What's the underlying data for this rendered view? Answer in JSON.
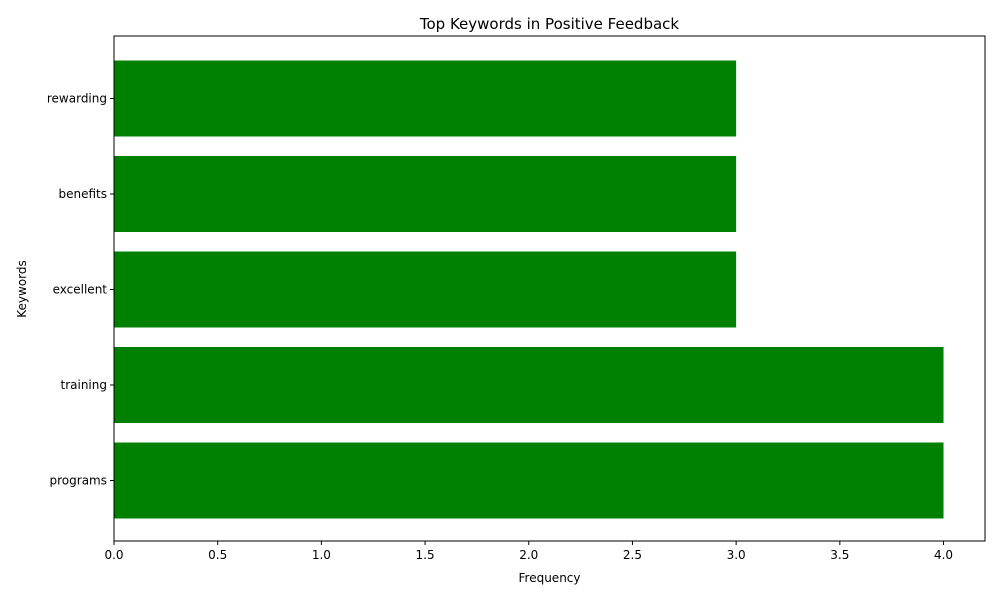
{
  "chart_data": {
    "type": "bar",
    "orientation": "horizontal",
    "title": "Top Keywords in Positive Feedback",
    "xlabel": "Frequency",
    "ylabel": "Keywords",
    "categories": [
      "programs",
      "training",
      "excellent",
      "benefits",
      "rewarding"
    ],
    "values": [
      4,
      4,
      3,
      3,
      3
    ],
    "xlim": [
      0,
      4.2
    ],
    "xticks": [
      "0.0",
      "0.5",
      "1.0",
      "1.5",
      "2.0",
      "2.5",
      "3.0",
      "3.5",
      "4.0"
    ],
    "bar_color": "#008000",
    "grid": false,
    "legend": "none"
  }
}
